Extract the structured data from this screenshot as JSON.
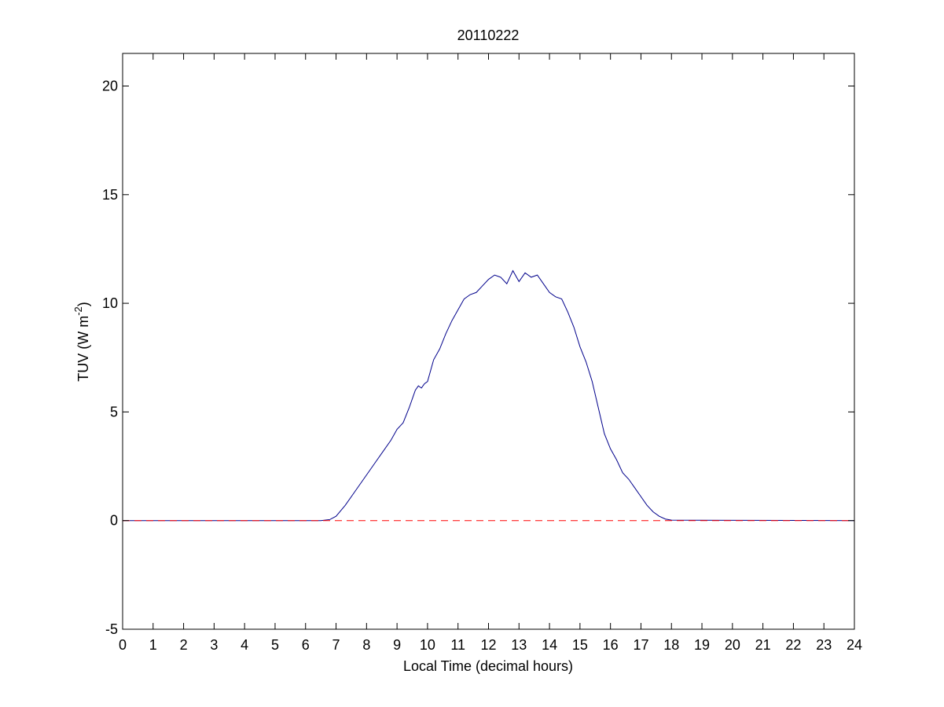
{
  "chart_data": {
    "type": "line",
    "title": "20110222",
    "xlabel": "Local Time (decimal hours)",
    "ylabel": {
      "prefix": "TUV (W m",
      "superscript": "-2",
      "suffix": ")"
    },
    "xlim": [
      0,
      24
    ],
    "ylim": [
      -5,
      21.5
    ],
    "x_ticks": [
      "0",
      "1",
      "2",
      "3",
      "4",
      "5",
      "6",
      "7",
      "8",
      "9",
      "10",
      "11",
      "12",
      "13",
      "14",
      "15",
      "16",
      "17",
      "18",
      "19",
      "20",
      "21",
      "22",
      "23",
      "24"
    ],
    "y_ticks": [
      "-5",
      "0",
      "5",
      "10",
      "15",
      "20"
    ],
    "grid": false,
    "series": [
      {
        "color": "#00008b",
        "line_style": "solid",
        "points": [
          [
            0,
            0.0
          ],
          [
            6.5,
            0.0
          ],
          [
            6.8,
            0.05
          ],
          [
            7.0,
            0.2
          ],
          [
            7.3,
            0.7
          ],
          [
            7.6,
            1.3
          ],
          [
            8.0,
            2.1
          ],
          [
            8.3,
            2.7
          ],
          [
            8.5,
            3.1
          ],
          [
            8.8,
            3.7
          ],
          [
            9.0,
            4.2
          ],
          [
            9.2,
            4.5
          ],
          [
            9.4,
            5.2
          ],
          [
            9.6,
            6.0
          ],
          [
            9.7,
            6.2
          ],
          [
            9.8,
            6.1
          ],
          [
            9.9,
            6.3
          ],
          [
            10.0,
            6.4
          ],
          [
            10.2,
            7.4
          ],
          [
            10.4,
            7.9
          ],
          [
            10.6,
            8.6
          ],
          [
            10.8,
            9.2
          ],
          [
            11.0,
            9.7
          ],
          [
            11.2,
            10.2
          ],
          [
            11.4,
            10.4
          ],
          [
            11.6,
            10.5
          ],
          [
            11.8,
            10.8
          ],
          [
            12.0,
            11.1
          ],
          [
            12.2,
            11.3
          ],
          [
            12.4,
            11.2
          ],
          [
            12.6,
            10.9
          ],
          [
            12.8,
            11.5
          ],
          [
            13.0,
            11.0
          ],
          [
            13.2,
            11.4
          ],
          [
            13.4,
            11.2
          ],
          [
            13.6,
            11.3
          ],
          [
            13.8,
            10.9
          ],
          [
            14.0,
            10.5
          ],
          [
            14.2,
            10.3
          ],
          [
            14.4,
            10.2
          ],
          [
            14.6,
            9.6
          ],
          [
            14.8,
            8.9
          ],
          [
            15.0,
            8.0
          ],
          [
            15.2,
            7.3
          ],
          [
            15.4,
            6.4
          ],
          [
            15.6,
            5.2
          ],
          [
            15.8,
            4.0
          ],
          [
            16.0,
            3.3
          ],
          [
            16.2,
            2.8
          ],
          [
            16.4,
            2.2
          ],
          [
            16.6,
            1.9
          ],
          [
            16.8,
            1.5
          ],
          [
            17.0,
            1.1
          ],
          [
            17.2,
            0.7
          ],
          [
            17.4,
            0.4
          ],
          [
            17.6,
            0.2
          ],
          [
            17.8,
            0.07
          ],
          [
            18.0,
            0.02
          ],
          [
            24,
            0.0
          ]
        ]
      },
      {
        "color": "#ff0000",
        "line_style": "dashed",
        "points": [
          [
            0,
            0
          ],
          [
            24,
            0
          ]
        ]
      }
    ]
  }
}
